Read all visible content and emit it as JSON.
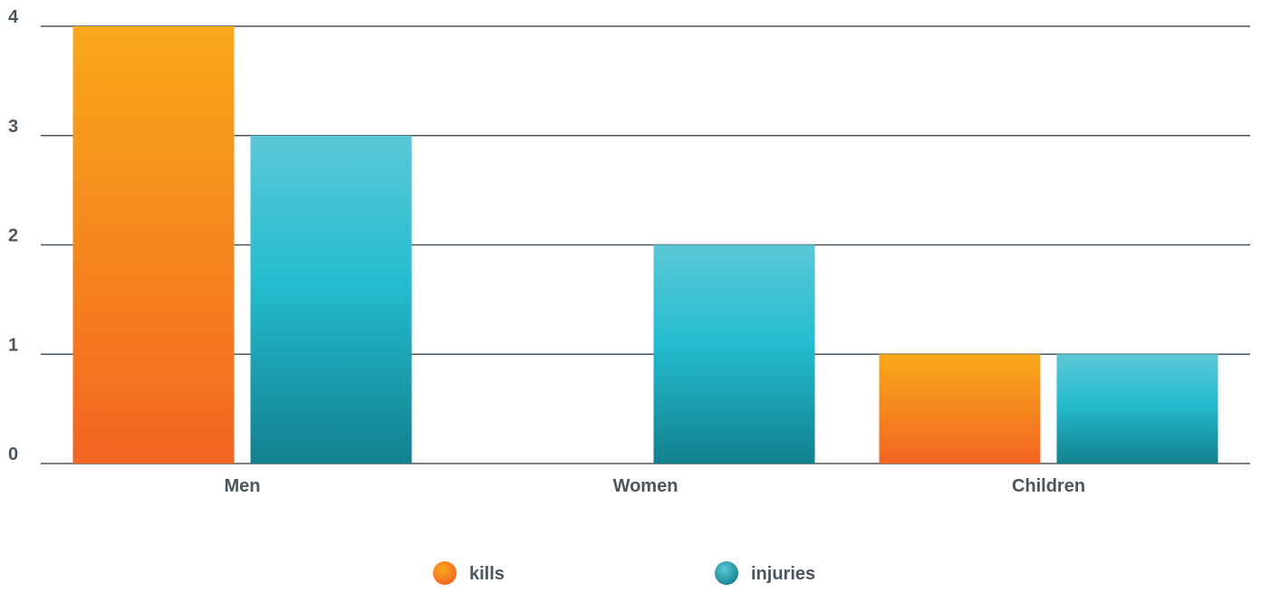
{
  "chart_data": {
    "type": "bar",
    "categories": [
      "Men",
      "Women",
      "Children"
    ],
    "series": [
      {
        "name": "kills",
        "values": [
          4,
          0,
          1
        ]
      },
      {
        "name": "injuries",
        "values": [
          3,
          2,
          1
        ]
      }
    ],
    "ylim": [
      0,
      4
    ],
    "yticks": [
      0,
      1,
      2,
      3,
      4
    ],
    "grid": true,
    "legend_position": "bottom-center",
    "colors": {
      "kills_top": "#F9A91B",
      "kills_bottom": "#F26522",
      "injuries_top": "#5BC8D6",
      "injuries_mid": "#25BCCF",
      "injuries_bottom": "#12808D",
      "axis_text": "#4B555E",
      "grid_line": "#4B555E"
    }
  }
}
